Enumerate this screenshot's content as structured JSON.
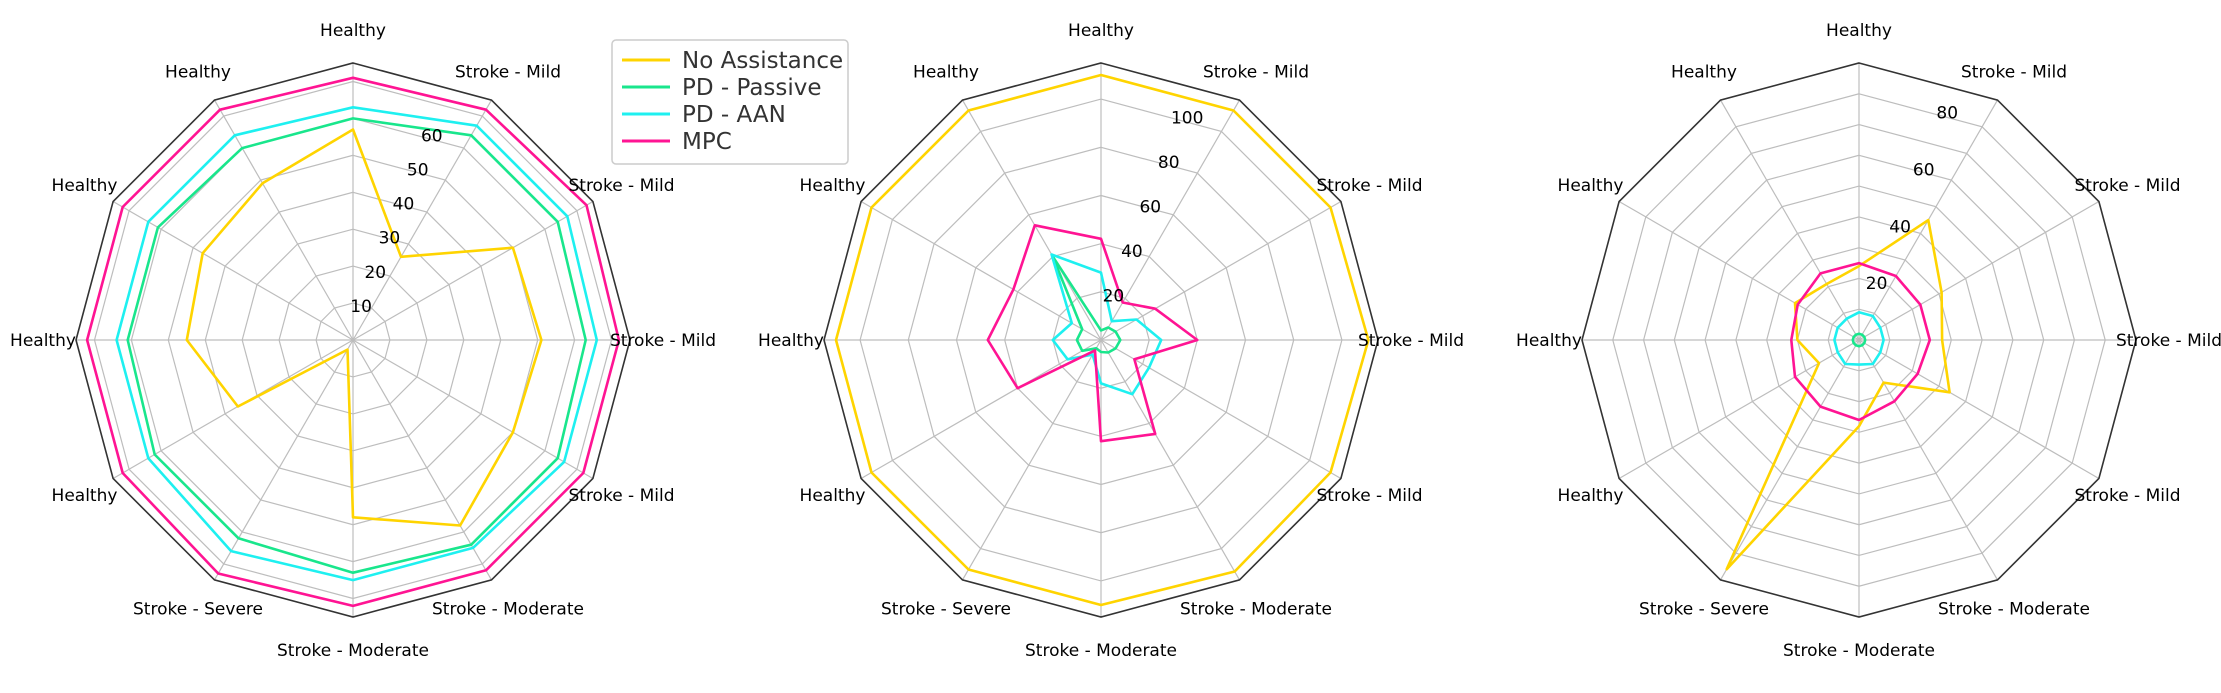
{
  "legend": [
    {
      "label": "No Assistance",
      "color": "#FFD400"
    },
    {
      "label": "PD - Passive",
      "color": "#19E68C"
    },
    {
      "label": "PD - AAN",
      "color": "#1EF0F0"
    },
    {
      "label": "MPC",
      "color": "#FF1493"
    }
  ],
  "colors": {
    "grid": "#bdbdbd",
    "frame": "#333333"
  },
  "chart_data": [
    {
      "type": "radar",
      "categories": [
        "Healthy",
        "Stroke - Mild",
        "Stroke - Mild",
        "Stroke - Mild",
        "Stroke - Mild",
        "Stroke - Moderate",
        "Stroke - Moderate",
        "Stroke - Severe",
        "Healthy",
        "Healthy",
        "Healthy",
        "Healthy"
      ],
      "rmax": 75,
      "grid_rings": [
        10,
        20,
        30,
        40,
        50,
        60,
        70
      ],
      "tick_labels": [
        10,
        20,
        30,
        40,
        50,
        60
      ],
      "series": [
        {
          "name": "No Assistance",
          "values": [
            57,
            26,
            50,
            51,
            50,
            58,
            48,
            3,
            36,
            45,
            47,
            49
          ]
        },
        {
          "name": "PD - Passive",
          "values": [
            60,
            64,
            64,
            63,
            64,
            64,
            63,
            62,
            62,
            61,
            61,
            60
          ]
        },
        {
          "name": "PD - AAN",
          "values": [
            63,
            67,
            67,
            66,
            66,
            65,
            65,
            66,
            64,
            64,
            64,
            64
          ]
        },
        {
          "name": "MPC",
          "values": [
            71,
            72,
            73,
            72,
            72,
            72,
            72,
            73,
            72,
            72,
            72,
            72
          ]
        }
      ]
    },
    {
      "type": "radar",
      "categories": [
        "Healthy",
        "Stroke - Mild",
        "Stroke - Mild",
        "Stroke - Mild",
        "Stroke - Mild",
        "Stroke - Moderate",
        "Stroke - Moderate",
        "Stroke - Severe",
        "Healthy",
        "Healthy",
        "Healthy",
        "Healthy"
      ],
      "rmax": 115,
      "grid_rings": [
        20,
        40,
        60,
        80,
        100
      ],
      "tick_labels": [
        20,
        40,
        60,
        80,
        100
      ],
      "series": [
        {
          "name": "No Assistance",
          "values": [
            110,
            110,
            110,
            111,
            110,
            111,
            110,
            110,
            110,
            110,
            110,
            110
          ]
        },
        {
          "name": "PD - Passive",
          "values": [
            4,
            6,
            7,
            8,
            7,
            6,
            5,
            4,
            9,
            10,
            9,
            40
          ]
        },
        {
          "name": "PD - AAN",
          "values": [
            28,
            9,
            17,
            25,
            23,
            26,
            18,
            7,
            16,
            20,
            14,
            41
          ]
        },
        {
          "name": "MPC",
          "values": [
            42,
            18,
            26,
            40,
            16,
            45,
            42,
            5,
            40,
            47,
            42,
            55
          ]
        }
      ]
    },
    {
      "type": "radar",
      "categories": [
        "Healthy",
        "Stroke - Mild",
        "Stroke - Mild",
        "Stroke - Mild",
        "Stroke - Mild",
        "Stroke - Moderate",
        "Stroke - Moderate",
        "Stroke - Severe",
        "Healthy",
        "Healthy",
        "Healthy",
        "Healthy"
      ],
      "rmax": 90,
      "grid_rings": [
        10,
        20,
        30,
        40,
        50,
        60,
        70,
        80
      ],
      "tick_labels": [
        20,
        40,
        60,
        80
      ],
      "series": [
        {
          "name": "No Assistance",
          "values": [
            24,
            45,
            31,
            27,
            34,
            16,
            28,
            86,
            15,
            20,
            24,
            21
          ]
        },
        {
          "name": "PD - Passive",
          "values": [
            2,
            2,
            2,
            2,
            2,
            2,
            2,
            2,
            2,
            2,
            2,
            2
          ]
        },
        {
          "name": "PD - AAN",
          "values": [
            9,
            9,
            8,
            8,
            8,
            9,
            8,
            9,
            8,
            8,
            8,
            8
          ]
        },
        {
          "name": "MPC",
          "values": [
            25,
            24,
            23,
            23,
            22,
            23,
            26,
            25,
            24,
            22,
            23,
            25
          ]
        }
      ]
    }
  ]
}
